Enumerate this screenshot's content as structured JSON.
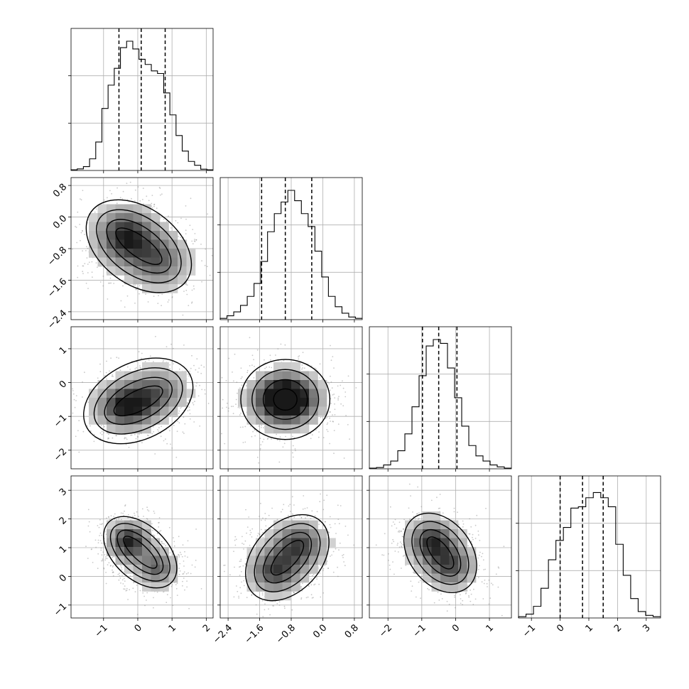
{
  "chart_data": {
    "type": "corner",
    "grid": true,
    "parameters": [
      {
        "ticks": [
          -1,
          0,
          1,
          2
        ],
        "tick_labels": [
          "−1",
          "0",
          "1",
          "2"
        ],
        "range": [
          -1.95,
          2.2
        ],
        "quantiles": [
          -0.55,
          0.1,
          0.8
        ],
        "hist_values": [
          0.005,
          0.012,
          0.03,
          0.09,
          0.22,
          0.48,
          0.66,
          0.79,
          0.95,
          1.0,
          0.94,
          0.86,
          0.82,
          0.77,
          0.75,
          0.6,
          0.43,
          0.27,
          0.15,
          0.07,
          0.04,
          0.01,
          0.005
        ]
      },
      {
        "ticks": [
          -2.4,
          -1.6,
          -0.8,
          0.0,
          0.8
        ],
        "tick_labels": [
          "−2.4",
          "−1.6",
          "−0.8",
          "0.0",
          "0.8"
        ],
        "range": [
          -2.6,
          1.0
        ],
        "quantiles": [
          -1.55,
          -0.95,
          -0.28
        ],
        "hist_values": [
          0.01,
          0.03,
          0.06,
          0.11,
          0.18,
          0.28,
          0.45,
          0.68,
          0.82,
          0.91,
          1.0,
          0.92,
          0.82,
          0.72,
          0.53,
          0.33,
          0.18,
          0.1,
          0.05,
          0.02,
          0.01
        ]
      },
      {
        "ticks": [
          -2,
          -1,
          0,
          1
        ],
        "tick_labels": [
          "−2",
          "−1",
          "0",
          "1"
        ],
        "range": [
          -2.55,
          1.65
        ],
        "quantiles": [
          -0.98,
          -0.5,
          0.04
        ],
        "hist_values": [
          0.005,
          0.01,
          0.03,
          0.06,
          0.14,
          0.27,
          0.48,
          0.72,
          0.95,
          1.0,
          0.97,
          0.78,
          0.55,
          0.33,
          0.18,
          0.1,
          0.06,
          0.03,
          0.015,
          0.005
        ]
      },
      {
        "ticks": [
          -1,
          0,
          1,
          2,
          3
        ],
        "tick_labels": [
          "−1",
          "0",
          "1",
          "2",
          "3"
        ],
        "range": [
          -1.45,
          3.5
        ],
        "quantiles": [
          0.0,
          0.78,
          1.5
        ],
        "hist_values": [
          0.01,
          0.03,
          0.09,
          0.23,
          0.45,
          0.6,
          0.7,
          0.85,
          0.86,
          0.93,
          0.97,
          0.93,
          0.86,
          0.57,
          0.33,
          0.15,
          0.05,
          0.02,
          0.01
        ]
      }
    ],
    "pairs": [
      {
        "row": 1,
        "col": 0,
        "clusters": [
          {
            "x": -0.35,
            "y": -0.5,
            "w": 0.6
          },
          {
            "x": 0.6,
            "y": -1.1,
            "w": 0.4
          }
        ],
        "sx": 0.55,
        "sy": 0.45
      },
      {
        "row": 2,
        "col": 0,
        "clusters": [
          {
            "x": -0.3,
            "y": -0.7,
            "w": 0.65
          },
          {
            "x": 0.6,
            "y": -0.25,
            "w": 0.35
          }
        ],
        "sx": 0.55,
        "sy": 0.42
      },
      {
        "row": 2,
        "col": 1,
        "clusters": [
          {
            "x": -0.95,
            "y": -0.5,
            "w": 1.0
          }
        ],
        "sx": 0.5,
        "sy": 0.45
      },
      {
        "row": 3,
        "col": 0,
        "clusters": [
          {
            "x": -0.25,
            "y": 1.2,
            "w": 0.6
          },
          {
            "x": 0.55,
            "y": 0.3,
            "w": 0.4
          }
        ],
        "sx": 0.38,
        "sy": 0.42
      },
      {
        "row": 3,
        "col": 1,
        "clusters": [
          {
            "x": -1.2,
            "y": 0.2,
            "w": 0.5
          },
          {
            "x": -0.6,
            "y": 1.1,
            "w": 0.5
          }
        ],
        "sx": 0.42,
        "sy": 0.5
      },
      {
        "row": 3,
        "col": 2,
        "clusters": [
          {
            "x": -0.7,
            "y": 1.2,
            "w": 0.55
          },
          {
            "x": -0.15,
            "y": 0.35,
            "w": 0.45
          }
        ],
        "sx": 0.45,
        "sy": 0.48
      }
    ]
  }
}
